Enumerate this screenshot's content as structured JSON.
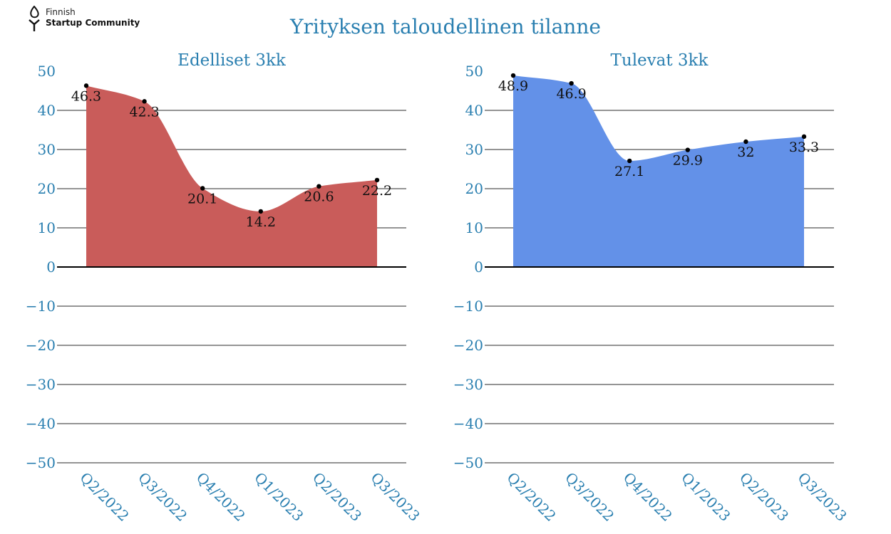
{
  "logo": {
    "line1": "Finnish",
    "line2": "Startup Community"
  },
  "page_title": "Yrityksen taloudellinen tilanne",
  "colors": {
    "title": "#2a7fb0",
    "left_fill": "#c95c5a",
    "right_fill": "#6391e8",
    "grid": "#555555",
    "zero_line": "#000000"
  },
  "chart_data": [
    {
      "type": "area",
      "title": "Edelliset 3kk",
      "categories": [
        "Q2/2022",
        "Q3/2022",
        "Q4/2022",
        "Q1/2023",
        "Q2/2023",
        "Q3/2023"
      ],
      "values": [
        46.3,
        42.3,
        20.1,
        14.2,
        20.6,
        22.2
      ],
      "ylim": [
        -50,
        50
      ],
      "yticks": [
        50,
        40,
        30,
        20,
        10,
        0,
        -10,
        -20,
        -30,
        -40,
        -50
      ],
      "grid": true,
      "fill_color": "#c95c5a"
    },
    {
      "type": "area",
      "title": "Tulevat 3kk",
      "categories": [
        "Q2/2022",
        "Q3/2022",
        "Q4/2022",
        "Q1/2023",
        "Q2/2023",
        "Q3/2023"
      ],
      "values": [
        48.9,
        46.9,
        27.1,
        29.9,
        32,
        33.3
      ],
      "ylim": [
        -50,
        50
      ],
      "yticks": [
        50,
        40,
        30,
        20,
        10,
        0,
        -10,
        -20,
        -30,
        -40,
        -50
      ],
      "grid": true,
      "fill_color": "#6391e8"
    }
  ]
}
